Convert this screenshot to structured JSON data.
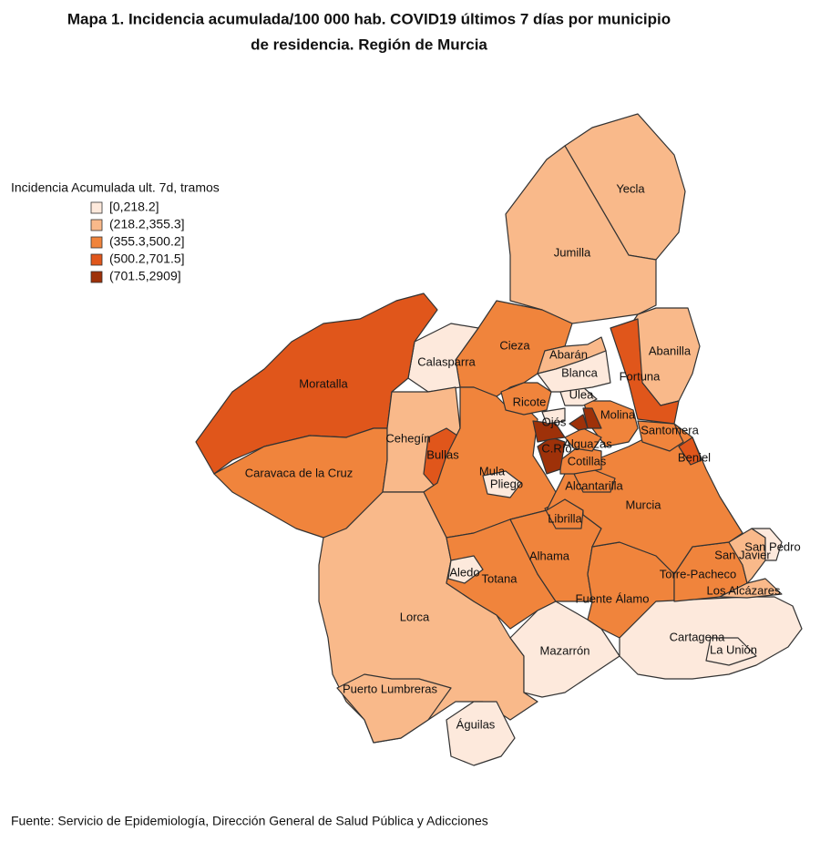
{
  "title": [
    "Mapa 1. Incidencia acumulada/100 000 hab. COVID19 últimos 7 días por municipio",
    "de residencia. Región de Murcia"
  ],
  "legend": {
    "title": "Incidencia Acumulada ult. 7d, tramos",
    "items": [
      {
        "label": "[0,218.2]",
        "color": "#fde9dc"
      },
      {
        "label": "(218.2,355.3]",
        "color": "#f9b98a"
      },
      {
        "label": "(355.3,500.2]",
        "color": "#f0843c"
      },
      {
        "label": "(500.2,701.5]",
        "color": "#e0561b"
      },
      {
        "label": "(701.5,2909]",
        "color": "#9e3109"
      }
    ]
  },
  "municipalities": [
    {
      "name": "Yecla",
      "class": 1
    },
    {
      "name": "Jumilla",
      "class": 1
    },
    {
      "name": "Abanilla",
      "class": 1
    },
    {
      "name": "Fortuna",
      "class": 3
    },
    {
      "name": "Cieza",
      "class": 2
    },
    {
      "name": "Calasparra",
      "class": 0
    },
    {
      "name": "Moratalla",
      "class": 3
    },
    {
      "name": "Caravaca de la Cruz",
      "class": 2
    },
    {
      "name": "Cehegín",
      "class": 1
    },
    {
      "name": "Bullas",
      "class": 3
    },
    {
      "name": "Mula",
      "class": 2
    },
    {
      "name": "Pliego",
      "class": 0
    },
    {
      "name": "Lorca",
      "class": 1
    },
    {
      "name": "Puerto Lumbreras",
      "class": 1
    },
    {
      "name": "Águilas",
      "class": 0
    },
    {
      "name": "Totana",
      "class": 2
    },
    {
      "name": "Aledo",
      "class": 0
    },
    {
      "name": "Alhama",
      "class": 2
    },
    {
      "name": "Librilla",
      "class": 2
    },
    {
      "name": "Mazarrón",
      "class": 0
    },
    {
      "name": "Fuente Álamo",
      "class": 2
    },
    {
      "name": "Cartagena",
      "class": 0
    },
    {
      "name": "La Unión",
      "class": 0
    },
    {
      "name": "Torre-Pacheco",
      "class": 2
    },
    {
      "name": "Los Alcázares",
      "class": 1
    },
    {
      "name": "San Javier",
      "class": 1
    },
    {
      "name": "San Pedro",
      "class": 0
    },
    {
      "name": "Murcia",
      "class": 2
    },
    {
      "name": "Santomera",
      "class": 2
    },
    {
      "name": "Beniel",
      "class": 3
    },
    {
      "name": "Alcantarilla",
      "class": 2
    },
    {
      "name": "Molina",
      "class": 2
    },
    {
      "name": "Cotillas",
      "class": 2
    },
    {
      "name": "Alguazas",
      "class": 2
    },
    {
      "name": "C.Río",
      "class": 4
    },
    {
      "name": null,
      "class": 4
    },
    {
      "name": "Ojós",
      "class": 0
    },
    {
      "name": "Ricote",
      "class": 2
    },
    {
      "name": "Ulea",
      "class": 0
    },
    {
      "name": "Abarán",
      "class": 1
    },
    {
      "name": "Blanca",
      "class": 0
    },
    {
      "name": null,
      "class": 4
    },
    {
      "name": null,
      "class": 4
    }
  ],
  "source": "Fuente: Servicio de Epidemiología, Dirección General de Salud Pública y Adicciones"
}
